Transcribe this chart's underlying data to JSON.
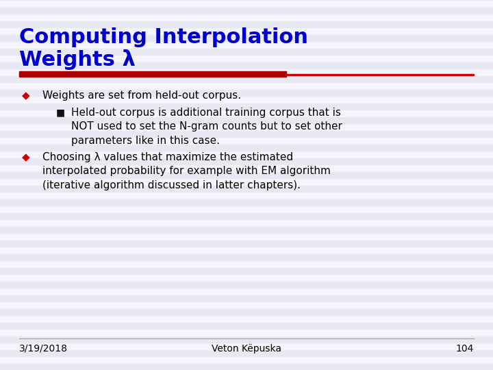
{
  "title_line1": "Computing Interpolation",
  "title_line2": "Weights λ",
  "title_color": "#0000cc",
  "title_fontsize": 22,
  "background_color": "#f0f0f8",
  "stripe_color_a": "#e8e8f2",
  "stripe_color_b": "#f4f4fa",
  "red_thick_color": "#aa0000",
  "red_thin_color": "#cc0000",
  "bullet_color": "#cc0000",
  "sub_bullet_color": "#111111",
  "body_fontsize": 11,
  "footer_fontsize": 10,
  "footer_date": "3/19/2018",
  "footer_name": "Veton Këpuska",
  "footer_page": "104"
}
